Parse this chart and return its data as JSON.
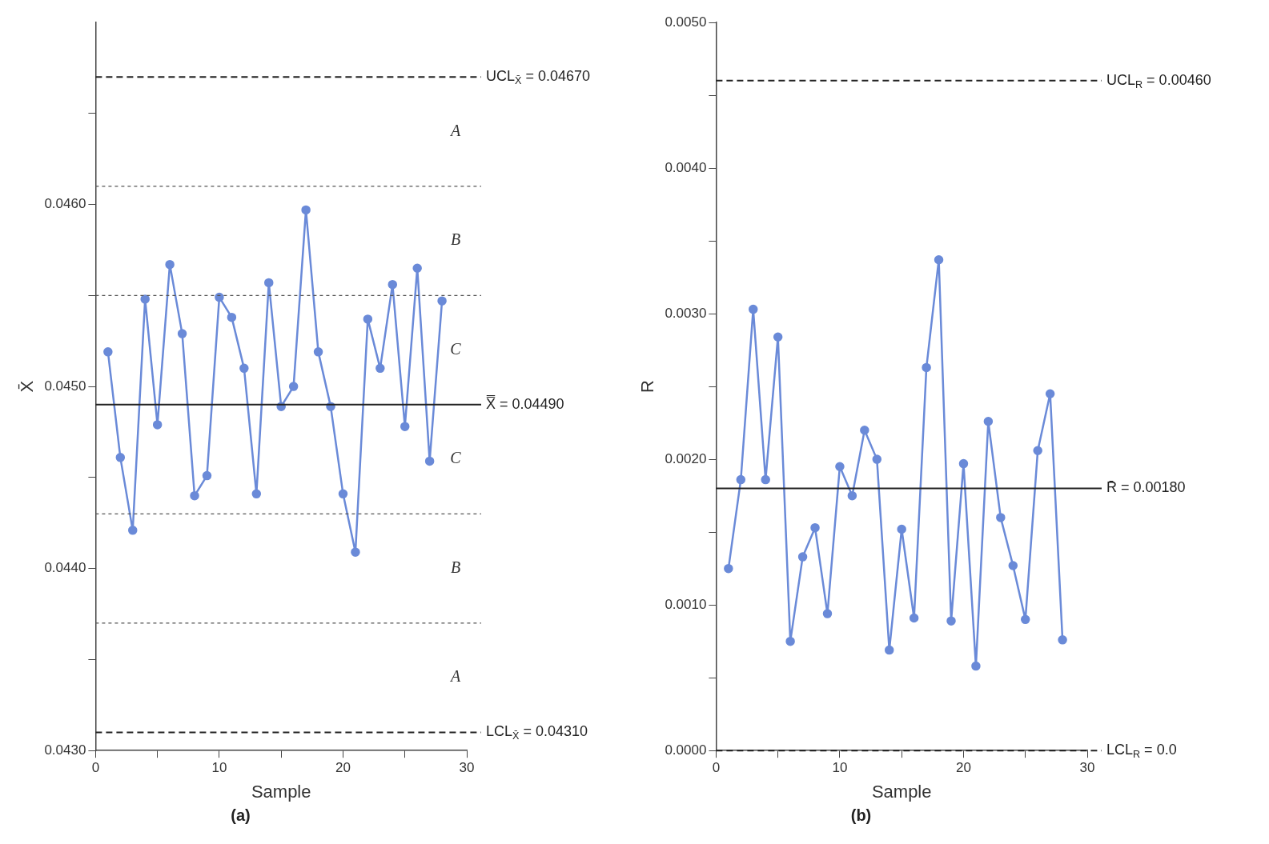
{
  "chart_data": [
    {
      "type": "line",
      "subtitle": "(a)",
      "xlabel": "Sample",
      "ylabel": "X̄",
      "legend": false,
      "grid": false,
      "marker": "circle",
      "xlim": [
        0,
        30
      ],
      "ylim": [
        0.043,
        0.047
      ],
      "xticks": [
        0,
        {
          "value": 5,
          "label": null
        },
        10,
        {
          "value": 15,
          "label": null
        },
        20,
        {
          "value": 25,
          "label": null
        },
        30
      ],
      "yticks": [
        {
          "value": 0.043,
          "label": "0.0430"
        },
        {
          "value": 0.0435,
          "label": null
        },
        {
          "value": 0.044,
          "label": "0.0440"
        },
        {
          "value": 0.0445,
          "label": null
        },
        {
          "value": 0.045,
          "label": "0.0450"
        },
        {
          "value": 0.0455,
          "label": null
        },
        {
          "value": 0.046,
          "label": "0.0460"
        },
        {
          "value": 0.0465,
          "label": null
        }
      ],
      "x": [
        1,
        2,
        3,
        4,
        5,
        6,
        7,
        8,
        9,
        10,
        11,
        12,
        13,
        14,
        15,
        16,
        17,
        18,
        19,
        20,
        21,
        22,
        23,
        24,
        25,
        26,
        27,
        28
      ],
      "series": [
        {
          "color": "#6a8ad8",
          "values": [
            0.04519,
            0.04461,
            0.04421,
            0.04548,
            0.04479,
            0.04567,
            0.04529,
            0.0444,
            0.04451,
            0.04549,
            0.04538,
            0.0451,
            0.04441,
            0.04557,
            0.04489,
            0.045,
            0.04597,
            0.04519,
            0.04489,
            0.04441,
            0.04409,
            0.04537,
            0.0451,
            0.04556,
            0.04478,
            0.04565,
            0.04459,
            0.04547
          ]
        }
      ],
      "ref_lines": [
        {
          "axis": "y",
          "value": 0.0467,
          "label": "UCL$_{X̄}$ = 0.04670",
          "line_style": "dashed",
          "color": "#222222"
        },
        {
          "axis": "y",
          "value": 0.0461,
          "label": null,
          "line_style": "dotted",
          "color": "#555555"
        },
        {
          "axis": "y",
          "value": 0.0455,
          "label": null,
          "line_style": "dotted",
          "color": "#555555"
        },
        {
          "axis": "y",
          "value": 0.0449,
          "label": "X̿ = 0.04490",
          "line_style": "solid",
          "color": "#222222"
        },
        {
          "axis": "y",
          "value": 0.0443,
          "label": null,
          "line_style": "dotted",
          "color": "#555555"
        },
        {
          "axis": "y",
          "value": 0.0437,
          "label": null,
          "line_style": "dotted",
          "color": "#555555"
        },
        {
          "axis": "y",
          "value": 0.0431,
          "label": "LCL$_{X̄}$ = 0.04310",
          "line_style": "dashed",
          "color": "#222222"
        }
      ],
      "annotations": [
        "A",
        "B",
        "C",
        "C",
        "B",
        "A"
      ]
    },
    {
      "type": "line",
      "subtitle": "(b)",
      "xlabel": "Sample",
      "ylabel": "R",
      "legend": false,
      "grid": false,
      "marker": "circle",
      "xlim": [
        0,
        30
      ],
      "ylim": [
        0,
        0.005
      ],
      "xticks": [
        0,
        {
          "value": 5,
          "label": null
        },
        10,
        {
          "value": 15,
          "label": null
        },
        20,
        {
          "value": 25,
          "label": null
        },
        30
      ],
      "yticks": [
        {
          "value": 0,
          "label": "0.0000"
        },
        {
          "value": 0.0005,
          "label": null
        },
        {
          "value": 0.001,
          "label": "0.0010"
        },
        {
          "value": 0.0015,
          "label": null
        },
        {
          "value": 0.002,
          "label": "0.0020"
        },
        {
          "value": 0.0025,
          "label": null
        },
        {
          "value": 0.003,
          "label": "0.0030"
        },
        {
          "value": 0.0035,
          "label": null
        },
        {
          "value": 0.004,
          "label": "0.0040"
        },
        {
          "value": 0.0045,
          "label": null
        },
        {
          "value": 0.005,
          "label": "0.0050"
        }
      ],
      "x": [
        1,
        2,
        3,
        4,
        5,
        6,
        7,
        8,
        9,
        10,
        11,
        12,
        13,
        14,
        15,
        16,
        17,
        18,
        19,
        20,
        21,
        22,
        23,
        24,
        25,
        26,
        27,
        28
      ],
      "series": [
        {
          "color": "#6a8ad8",
          "values": [
            0.00125,
            0.00186,
            0.00303,
            0.00186,
            0.00284,
            0.00075,
            0.00133,
            0.00153,
            0.00094,
            0.00195,
            0.00175,
            0.0022,
            0.002,
            0.00069,
            0.00152,
            0.00091,
            0.00263,
            0.00337,
            0.00089,
            0.00197,
            0.00058,
            0.00226,
            0.0016,
            0.00127,
            0.0009,
            0.00206,
            0.00245,
            0.00076
          ]
        }
      ],
      "ref_lines": [
        {
          "axis": "y",
          "value": 0.0046,
          "label": "UCL$_{R}$ = 0.00460",
          "line_style": "dashed",
          "color": "#222222"
        },
        {
          "axis": "y",
          "value": 0.0018,
          "label": "R̄ = 0.00180",
          "line_style": "solid",
          "color": "#222222"
        },
        {
          "axis": "y",
          "value": 0,
          "label": "LCL$_{R}$ = 0.0",
          "line_style": "dashed",
          "color": "#222222"
        }
      ]
    }
  ]
}
